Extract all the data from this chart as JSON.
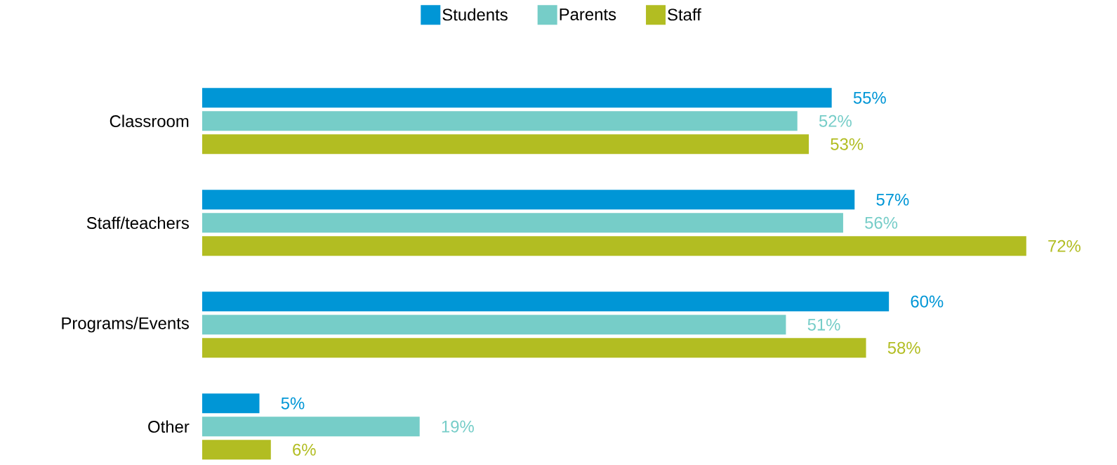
{
  "chart_data": {
    "type": "bar",
    "orientation": "horizontal",
    "categories": [
      "Classroom",
      "Staff/teachers",
      "Programs/Events",
      "Other"
    ],
    "series": [
      {
        "name": "Students",
        "color": "#0096d6",
        "values": [
          55,
          57,
          60,
          5
        ],
        "value_labels": [
          "55%",
          "57%",
          "60%",
          "5%"
        ]
      },
      {
        "name": "Parents",
        "color": "#76cdc8",
        "values": [
          52,
          56,
          51,
          19
        ],
        "value_labels": [
          "52%",
          "56%",
          "51%",
          "19%"
        ]
      },
      {
        "name": "Staff",
        "color": "#b2bd22",
        "values": [
          53,
          72,
          58,
          6
        ],
        "value_labels": [
          "53%",
          "72%",
          "58%",
          "6%"
        ]
      }
    ],
    "legend": "top"
  }
}
